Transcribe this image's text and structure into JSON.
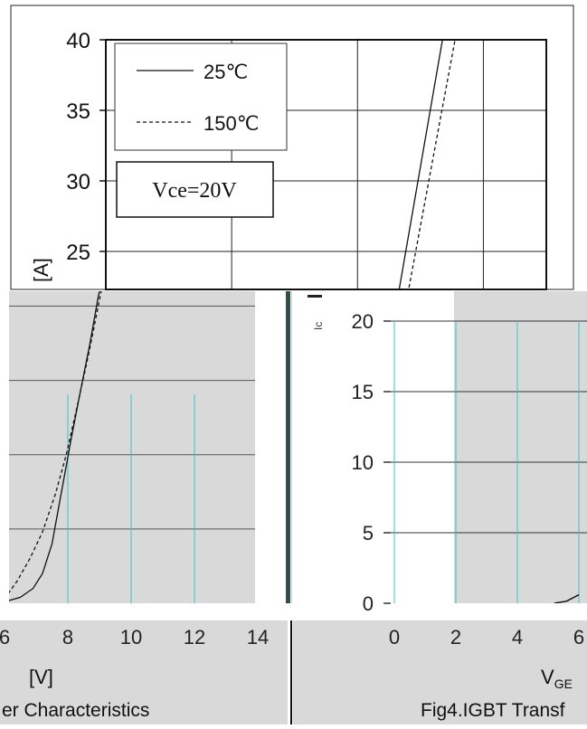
{
  "chart_data": [
    {
      "type": "line",
      "xlabel": "",
      "ylabel": "[A]",
      "ylim": [
        0,
        40
      ],
      "y_ticks": [
        {
          "label": "40",
          "value": 40
        },
        {
          "label": "35",
          "value": 35
        },
        {
          "label": "30",
          "value": 30
        },
        {
          "label": "25",
          "value": 25
        }
      ],
      "legend": {
        "placement": "top-left",
        "entries": [
          "25℃",
          "150℃"
        ]
      },
      "annotation": "Vce=20V",
      "grid": true,
      "series": [
        {
          "name": "25℃",
          "style": "solid",
          "x": [
            8.65,
            9.35
          ],
          "y": [
            22.0,
            40.0
          ]
        },
        {
          "name": "150℃",
          "style": "dashed",
          "x": [
            8.8,
            9.55
          ],
          "y": [
            22.0,
            40.0
          ]
        }
      ]
    },
    {
      "type": "line",
      "xlabel": "[V]",
      "caption": "er Characteristics",
      "xlim": [
        6,
        14
      ],
      "ylim": [
        0,
        21
      ],
      "x_ticks": [
        {
          "label": "6",
          "value": 6
        },
        {
          "label": "8",
          "value": 8
        },
        {
          "label": "10",
          "value": 10
        },
        {
          "label": "12",
          "value": 12
        },
        {
          "label": "14",
          "value": 14
        }
      ],
      "grid": true,
      "series": [
        {
          "name": "25℃",
          "style": "solid",
          "x": [
            6.0,
            6.5,
            6.9,
            7.2,
            7.5,
            7.8,
            8.1,
            8.4,
            8.7,
            8.95,
            9.1
          ],
          "y": [
            0.1,
            0.4,
            1.0,
            2.0,
            4.0,
            7.5,
            11.0,
            14.3,
            17.5,
            20.5,
            22.0
          ]
        },
        {
          "name": "150℃",
          "style": "dashed",
          "x": [
            6.0,
            6.4,
            6.8,
            7.2,
            7.6,
            7.95,
            8.3,
            8.6,
            8.85,
            9.05,
            9.2
          ],
          "y": [
            0.3,
            1.5,
            3.0,
            4.8,
            7.3,
            10.0,
            13.3,
            16.2,
            18.8,
            21.0,
            22.0
          ]
        }
      ]
    },
    {
      "type": "line",
      "xlabel": "VGE",
      "xlabel_main": "V",
      "xlabel_sub": "GE",
      "caption": "Fig4.IGBT Transf",
      "xlim": [
        0,
        6
      ],
      "ylim": [
        0,
        21
      ],
      "x_ticks": [
        {
          "label": "0",
          "value": 0
        },
        {
          "label": "2",
          "value": 2
        },
        {
          "label": "4",
          "value": 4
        },
        {
          "label": "6",
          "value": 6
        }
      ],
      "y_ticks": [
        {
          "label": "0",
          "value": 0
        },
        {
          "label": "5",
          "value": 5
        },
        {
          "label": "10",
          "value": 10
        },
        {
          "label": "15",
          "value": 15
        },
        {
          "label": "20",
          "value": 20
        }
      ],
      "ylabel": "Ic",
      "grid": true,
      "series": [
        {
          "name": "25℃",
          "style": "solid",
          "x": [
            5.2,
            5.6,
            6.0
          ],
          "y": [
            0.0,
            0.15,
            0.6
          ]
        }
      ]
    }
  ]
}
